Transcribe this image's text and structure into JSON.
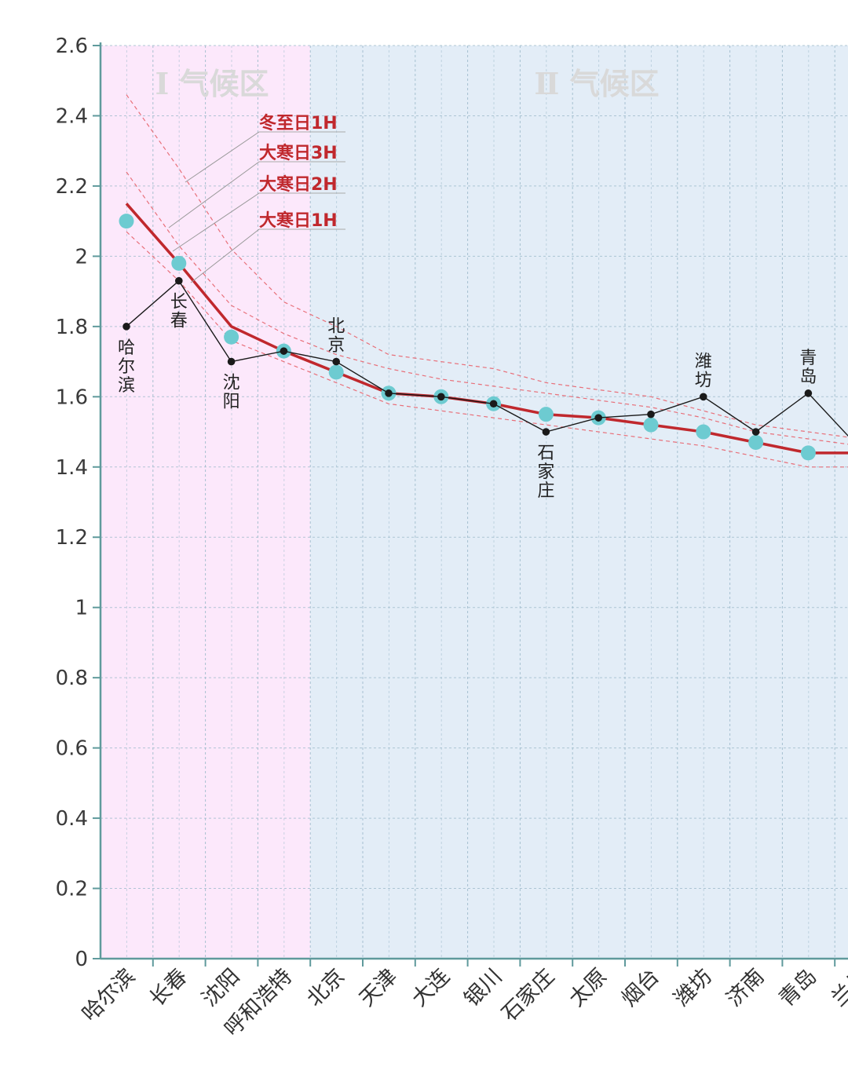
{
  "chart_data": {
    "type": "line",
    "title": "",
    "xlabel": "",
    "ylabel": "",
    "ylim": [
      0,
      2.6
    ],
    "yticks": [
      "0",
      "0.2",
      "0.4",
      "0.6",
      "0.8",
      "1",
      "1.2",
      "1.4",
      "1.6",
      "1.8",
      "2",
      "2.2",
      "2.4",
      "2.6"
    ],
    "categories": [
      "哈尔滨",
      "长春",
      "沈阳",
      "呼和浩特",
      "北京",
      "天津",
      "大连",
      "银川",
      "石家庄",
      "太原",
      "烟台",
      "潍坊",
      "济南",
      "青岛",
      "兰州"
    ],
    "zones": [
      {
        "label": "Ⅰ 气候区",
        "from_index": 0,
        "to_index": 3,
        "color": "#fce8fb"
      },
      {
        "label": "Ⅱ 气候区",
        "from_index": 4,
        "to_index": 14,
        "color": "#e3edf7"
      }
    ],
    "grid": true,
    "legend_position": "top-left",
    "series": [
      {
        "name": "冬至日1H",
        "style": "dashed",
        "color": "#e8707a",
        "values": [
          2.46,
          2.25,
          2.02,
          1.87,
          1.8,
          1.72,
          1.7,
          1.68,
          1.64,
          1.62,
          1.6,
          1.56,
          1.52,
          1.5,
          1.48
        ]
      },
      {
        "name": "大寒日3H",
        "style": "dashed",
        "color": "#e8707a",
        "values": [
          2.24,
          2.03,
          1.86,
          1.78,
          1.72,
          1.68,
          1.65,
          1.63,
          1.61,
          1.59,
          1.57,
          1.54,
          1.5,
          1.48,
          1.46
        ]
      },
      {
        "name": "大寒日2H",
        "style": "solid",
        "color": "#c0282d",
        "values": [
          2.15,
          1.98,
          1.8,
          1.73,
          1.67,
          1.61,
          1.6,
          1.58,
          1.55,
          1.54,
          1.52,
          1.5,
          1.47,
          1.44,
          1.44
        ]
      },
      {
        "name": "大寒日1H",
        "style": "dashed",
        "color": "#e8707a",
        "values": [
          2.07,
          1.93,
          1.76,
          1.7,
          1.64,
          1.58,
          1.56,
          1.54,
          1.52,
          1.5,
          1.48,
          1.46,
          1.43,
          1.4,
          1.4
        ]
      },
      {
        "name": "",
        "style": "markers",
        "color": "#6dcbd1",
        "values": [
          2.1,
          1.98,
          1.77,
          1.73,
          1.67,
          1.61,
          1.6,
          1.58,
          1.55,
          1.54,
          1.52,
          1.5,
          1.47,
          1.44,
          1.44
        ]
      },
      {
        "name": "",
        "style": "solid-dots",
        "color": "#1a1a1a",
        "values": [
          1.8,
          1.93,
          1.7,
          1.73,
          1.7,
          1.61,
          1.6,
          1.58,
          1.5,
          1.54,
          1.55,
          1.6,
          1.5,
          1.61,
          1.45
        ]
      }
    ],
    "annotations": [
      {
        "text": "哈尔滨",
        "index": 0,
        "series_value": 1.8,
        "placement": "below"
      },
      {
        "text": "长春",
        "index": 1,
        "series_value": 1.93,
        "placement": "below"
      },
      {
        "text": "沈阳",
        "index": 2,
        "series_value": 1.7,
        "placement": "below"
      },
      {
        "text": "北京",
        "index": 4,
        "series_value": 1.7,
        "placement": "above"
      },
      {
        "text": "石家庄",
        "index": 8,
        "series_value": 1.5,
        "placement": "below"
      },
      {
        "text": "潍坊",
        "index": 11,
        "series_value": 1.6,
        "placement": "above"
      },
      {
        "text": "青岛",
        "index": 13,
        "series_value": 1.61,
        "placement": "above"
      }
    ]
  },
  "colors": {
    "axis": "#5f9a9c",
    "grid": "#9fbccc",
    "red_line": "#c0282d",
    "dashed": "#e8707a",
    "cyan": "#6dcbd1",
    "black": "#1a1a1a",
    "legend_text": "#c0282d"
  }
}
